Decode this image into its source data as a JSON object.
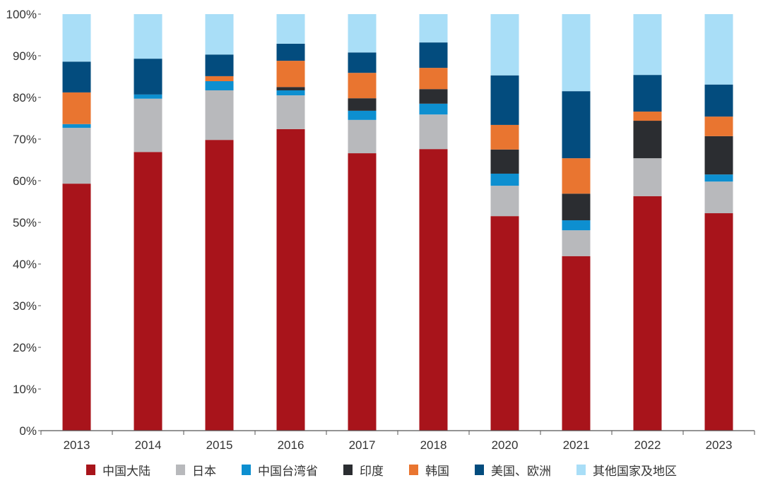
{
  "chart_data": {
    "type": "bar",
    "stacked": true,
    "categories": [
      "2013",
      "2014",
      "2015",
      "2016",
      "2017",
      "2018",
      "2020",
      "2021",
      "2022",
      "2023"
    ],
    "ylim": [
      0,
      100
    ],
    "yticks": [
      "0%",
      "10%",
      "20%",
      "30%",
      "40%",
      "50%",
      "60%",
      "70%",
      "80%",
      "90%",
      "100%"
    ],
    "grid": false,
    "legend_position": "bottom",
    "series": [
      {
        "name": "中国大陆",
        "color": "#a8141b",
        "values": [
          59.3,
          66.9,
          69.8,
          72.4,
          66.6,
          67.6,
          51.5,
          41.9,
          56.3,
          52.2
        ]
      },
      {
        "name": "日本",
        "color": "#b8b9bc",
        "values": [
          13.4,
          12.8,
          11.9,
          8.1,
          8.0,
          8.3,
          7.3,
          6.2,
          9.1,
          7.6
        ]
      },
      {
        "name": "中国台湾省",
        "color": "#0d8fd0",
        "values": [
          0.9,
          1.0,
          2.2,
          1.2,
          2.2,
          2.6,
          2.9,
          2.4,
          0,
          1.7
        ]
      },
      {
        "name": "印度",
        "color": "#2b2d31",
        "values": [
          0,
          0,
          0,
          0.8,
          3.0,
          3.5,
          5.8,
          6.4,
          9.0,
          9.2
        ]
      },
      {
        "name": "韩国",
        "color": "#e97530",
        "values": [
          7.6,
          0,
          1.2,
          6.3,
          6.1,
          5.1,
          5.9,
          8.5,
          2.2,
          4.7
        ]
      },
      {
        "name": "美国、欧洲",
        "color": "#034c7e",
        "values": [
          7.4,
          8.6,
          5.2,
          4.1,
          4.9,
          6.1,
          11.9,
          16.1,
          8.8,
          7.7
        ]
      },
      {
        "name": "其他国家及地区",
        "color": "#a9def7",
        "values": [
          11.4,
          10.7,
          9.7,
          7.1,
          9.2,
          6.8,
          14.7,
          18.5,
          14.6,
          16.9
        ]
      }
    ]
  }
}
